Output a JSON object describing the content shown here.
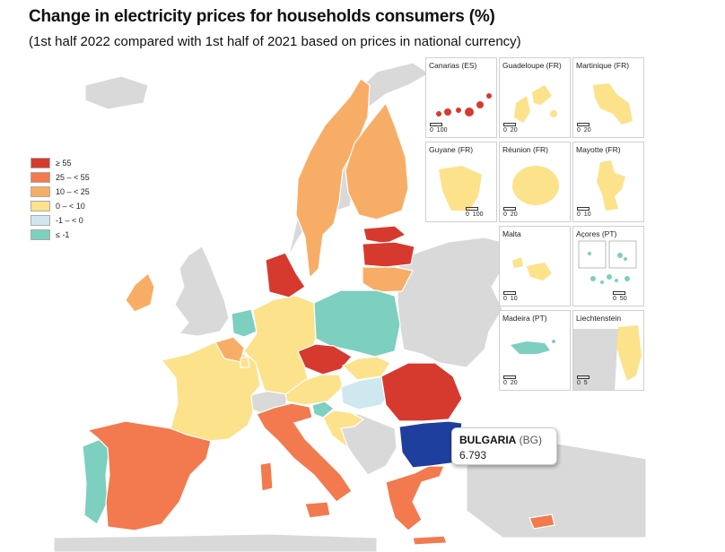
{
  "title": "Change in electricity prices for households consumers (%)",
  "subtitle": "(1st half 2022 compared with 1st half of 2021 based on prices in national currency)",
  "legend": [
    {
      "label": "≥ 55",
      "color": "#d63a2f"
    },
    {
      "label": "25 – < 55",
      "color": "#f27a4e"
    },
    {
      "label": "10 – < 25",
      "color": "#f8ad66"
    },
    {
      "label": "0 – < 10",
      "color": "#fce28b"
    },
    {
      "label": "-1 – < 0",
      "color": "#cfe8ef"
    },
    {
      "label": "≤ -1",
      "color": "#7dcfc0"
    }
  ],
  "colors": {
    "sea": "#ffffff",
    "non_member": "#d9d9d9",
    "highlight": "#1f3f9e",
    "border": "#ffffff"
  },
  "insets": [
    {
      "label": "Canarias (ES)",
      "scale": [
        "0",
        "100"
      ],
      "class": "≥ 55"
    },
    {
      "label": "Guadeloupe (FR)",
      "scale": [
        "0",
        "20"
      ],
      "class": "0 – < 10"
    },
    {
      "label": "Martinique (FR)",
      "scale": [
        "0",
        "20"
      ],
      "class": "0 – < 10"
    },
    {
      "label": "Guyane (FR)",
      "scale": [
        "0",
        "100"
      ],
      "class": "0 – < 10"
    },
    {
      "label": "Réunion (FR)",
      "scale": [
        "0",
        "20"
      ],
      "class": "0 – < 10"
    },
    {
      "label": "Mayotte (FR)",
      "scale": [
        "0",
        "10"
      ],
      "class": "0 – < 10"
    },
    {
      "label": "Malta",
      "scale": [
        "0",
        "10"
      ],
      "class": "0 – < 10"
    },
    {
      "label": "Açores (PT)",
      "scale": [
        "0",
        "50"
      ],
      "class": "≤ -1"
    },
    {
      "label": "Madeira (PT)",
      "scale": [
        "0",
        "20"
      ],
      "class": "≤ -1"
    },
    {
      "label": "Liechtenstein",
      "scale": [
        "0",
        "5"
      ],
      "class": "0 – < 10"
    }
  ],
  "tooltip": {
    "country": "BULGARIA",
    "code": "(BG)",
    "value": "6.793"
  }
}
